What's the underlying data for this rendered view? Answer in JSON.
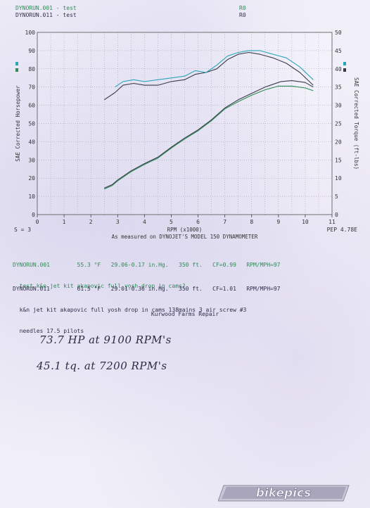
{
  "header": {
    "run1": {
      "label": "DYNORUN.001 - test",
      "code": "R0"
    },
    "run2": {
      "label": "DYNORUN.011 - test",
      "code": "R0"
    }
  },
  "chart_data": {
    "type": "line",
    "xlabel": "RPM (x1000)",
    "ylabel_left": "SAE Corrected Horsepower",
    "ylabel_right": "SAE Corrected Torque (ft-lbs)",
    "xlim": [
      0,
      11
    ],
    "ylim_left": [
      0,
      100
    ],
    "ylim_right": [
      0,
      50
    ],
    "xticks": [
      "0",
      "1",
      "2",
      "3",
      "4",
      "5",
      "6",
      "7",
      "8",
      "9",
      "10",
      "11"
    ],
    "yticks_left": [
      "0",
      "10",
      "20",
      "30",
      "40",
      "50",
      "60",
      "70",
      "80",
      "90",
      "100"
    ],
    "yticks_right": [
      "0",
      "5",
      "10",
      "15",
      "20",
      "25",
      "30",
      "35",
      "40",
      "45",
      "50"
    ],
    "grid": true,
    "legend": "left-side color keys",
    "smoothing_label": "S = 3",
    "corner_label": "PEP 4.78E",
    "subtitle": "As measured on DYNOJET'S MODEL 150 DYNAMOMETER",
    "series": [
      {
        "name": "DYNORUN.001",
        "kind": "horsepower",
        "color": "#3a3a4a",
        "x": [
          2.5,
          2.8,
          3.0,
          3.5,
          4.0,
          4.5,
          5.0,
          5.5,
          6.0,
          6.5,
          7.0,
          7.5,
          8.0,
          8.5,
          9.0,
          9.1,
          9.5,
          10.0,
          10.3
        ],
        "y": [
          14.5,
          16.5,
          19.0,
          24.0,
          28.0,
          31.5,
          37.0,
          42.0,
          46.5,
          52.0,
          58.5,
          63.0,
          66.5,
          70.0,
          72.5,
          73.0,
          73.5,
          72.5,
          70.0
        ]
      },
      {
        "name": "DYNORUN.011",
        "kind": "horsepower",
        "color": "#2e8b57",
        "x": [
          2.5,
          2.8,
          3.0,
          3.5,
          4.0,
          4.5,
          5.0,
          5.5,
          6.0,
          6.5,
          7.0,
          7.5,
          8.0,
          8.5,
          9.0,
          9.5,
          10.0,
          10.3
        ],
        "y": [
          14.0,
          16.0,
          18.5,
          23.5,
          27.5,
          31.0,
          36.5,
          41.5,
          46.0,
          51.5,
          58.0,
          62.0,
          65.5,
          68.5,
          70.5,
          70.5,
          69.5,
          68.0
        ]
      },
      {
        "name": "DYNORUN.001",
        "kind": "torque",
        "color": "#3a3a4a",
        "x": [
          2.5,
          2.9,
          3.2,
          3.6,
          4.0,
          4.5,
          5.0,
          5.5,
          5.9,
          6.3,
          6.7,
          7.1,
          7.5,
          7.9,
          8.3,
          8.8,
          9.3,
          9.8,
          10.3
        ],
        "y": [
          31.5,
          33.5,
          35.5,
          36.0,
          35.5,
          35.5,
          36.5,
          37.0,
          38.5,
          39.0,
          40.0,
          42.5,
          44.0,
          44.5,
          44.0,
          43.0,
          41.5,
          39.0,
          35.5
        ]
      },
      {
        "name": "DYNORUN.011",
        "kind": "torque",
        "color": "#2aa6b8",
        "x": [
          2.9,
          3.2,
          3.6,
          4.0,
          4.5,
          5.0,
          5.5,
          5.9,
          6.3,
          6.7,
          7.1,
          7.5,
          7.9,
          8.3,
          8.8,
          9.3,
          9.8,
          10.3
        ],
        "y": [
          35.0,
          36.5,
          37.0,
          36.5,
          37.0,
          37.5,
          38.0,
          39.5,
          39.0,
          41.0,
          43.5,
          44.5,
          45.0,
          45.0,
          44.0,
          43.0,
          40.5,
          37.0
        ]
      }
    ]
  },
  "runs": [
    {
      "line1": "DYNORUN.001        55.3 °F   29.06-0.17 in.Hg.   350 ft.   CF=0.99   RPM/MPH=97",
      "line2": "  test k&n jet kit akapovic full yosh drop in cams?",
      "line3": ""
    },
    {
      "line1": "DYNORUN.011        61.5 °F   29.01-0.36 in.Hg.   350 ft.   CF=1.01   RPM/MPH=97",
      "line2": "  k&n jet kit akapovic full yosh drop in cams 138mains 3 air screw #3",
      "line3": "  needles 17.5 pilots"
    }
  ],
  "shop_name": "Kurwood Farms Repair",
  "handwritten": {
    "hp_note": "73.7 HP at 9100 RPM's",
    "tq_note": "45.1 tq. at 7200 RPM's"
  },
  "watermark": "bikepics"
}
